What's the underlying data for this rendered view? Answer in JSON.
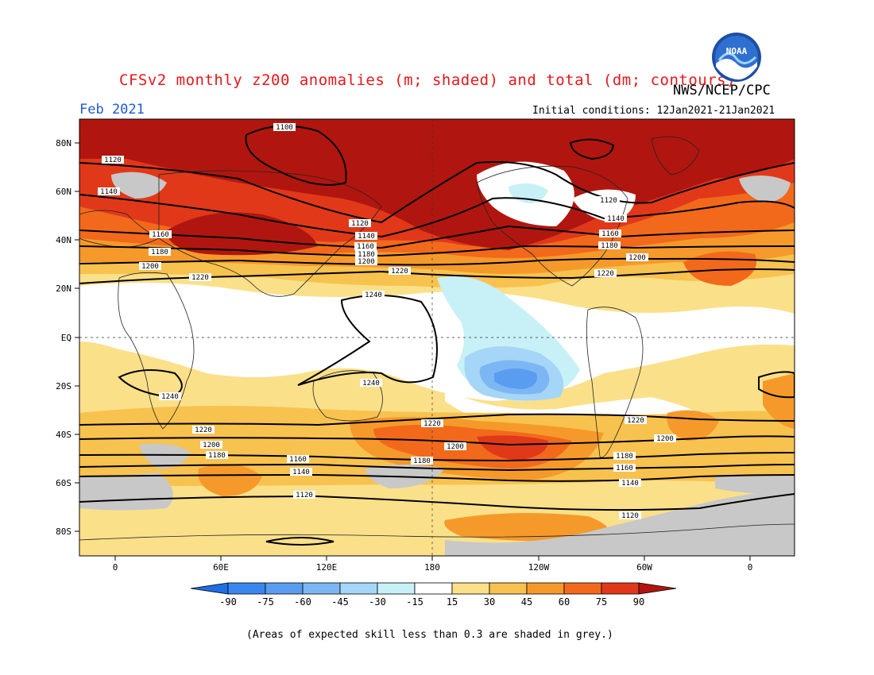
{
  "header": {
    "title": "CFSv2 monthly z200 anomalies (m; shaded) and total (dm; contours)",
    "org": "NWS/NCEP/CPC",
    "month": "Feb 2021",
    "initial_conditions": "Initial conditions: 12Jan2021-21Jan2021",
    "logo_text": "NOAA"
  },
  "colors": {
    "neg90": "#1f6ee6",
    "neg75": "#3a86ef",
    "neg60": "#5a9cf0",
    "neg45": "#7db7f3",
    "neg30": "#a5d6f7",
    "neg15": "#c8f0f7",
    "neutral": "#ffffff",
    "pos15": "#fbe08a",
    "pos30": "#f8c24f",
    "pos45": "#f59a2a",
    "pos60": "#f2691b",
    "pos75": "#e1381a",
    "pos90": "#b0160f",
    "grey": "#c8c8c8",
    "title": "#e8161b",
    "month": "#1e58d8"
  },
  "axes": {
    "lat_labels": [
      "80N",
      "60N",
      "40N",
      "20N",
      "EQ",
      "20S",
      "40S",
      "60S",
      "80S"
    ],
    "lon_labels": [
      "0",
      "60E",
      "120E",
      "180",
      "120W",
      "60W",
      "0"
    ]
  },
  "contour_labels": [
    "1100",
    "1120",
    "1140",
    "1160",
    "1180",
    "1200",
    "1220",
    "1240",
    "1120",
    "1140",
    "1160",
    "1180",
    "1200",
    "1220",
    "1120",
    "1140",
    "1160",
    "1180",
    "1200",
    "1220",
    "1240",
    "1240",
    "1220",
    "1200",
    "1180",
    "1160",
    "1140",
    "1120",
    "1220",
    "1200",
    "1180",
    "1160",
    "1140",
    "1120",
    "1220",
    "1200",
    "1180",
    "1160",
    "1140",
    "1120"
  ],
  "colorbar": {
    "labels": [
      "-90",
      "-75",
      "-60",
      "-45",
      "-30",
      "-15",
      "15",
      "30",
      "45",
      "60",
      "75",
      "90"
    ]
  },
  "footnote": "(Areas of expected skill less than 0.3 are shaded in grey.)"
}
